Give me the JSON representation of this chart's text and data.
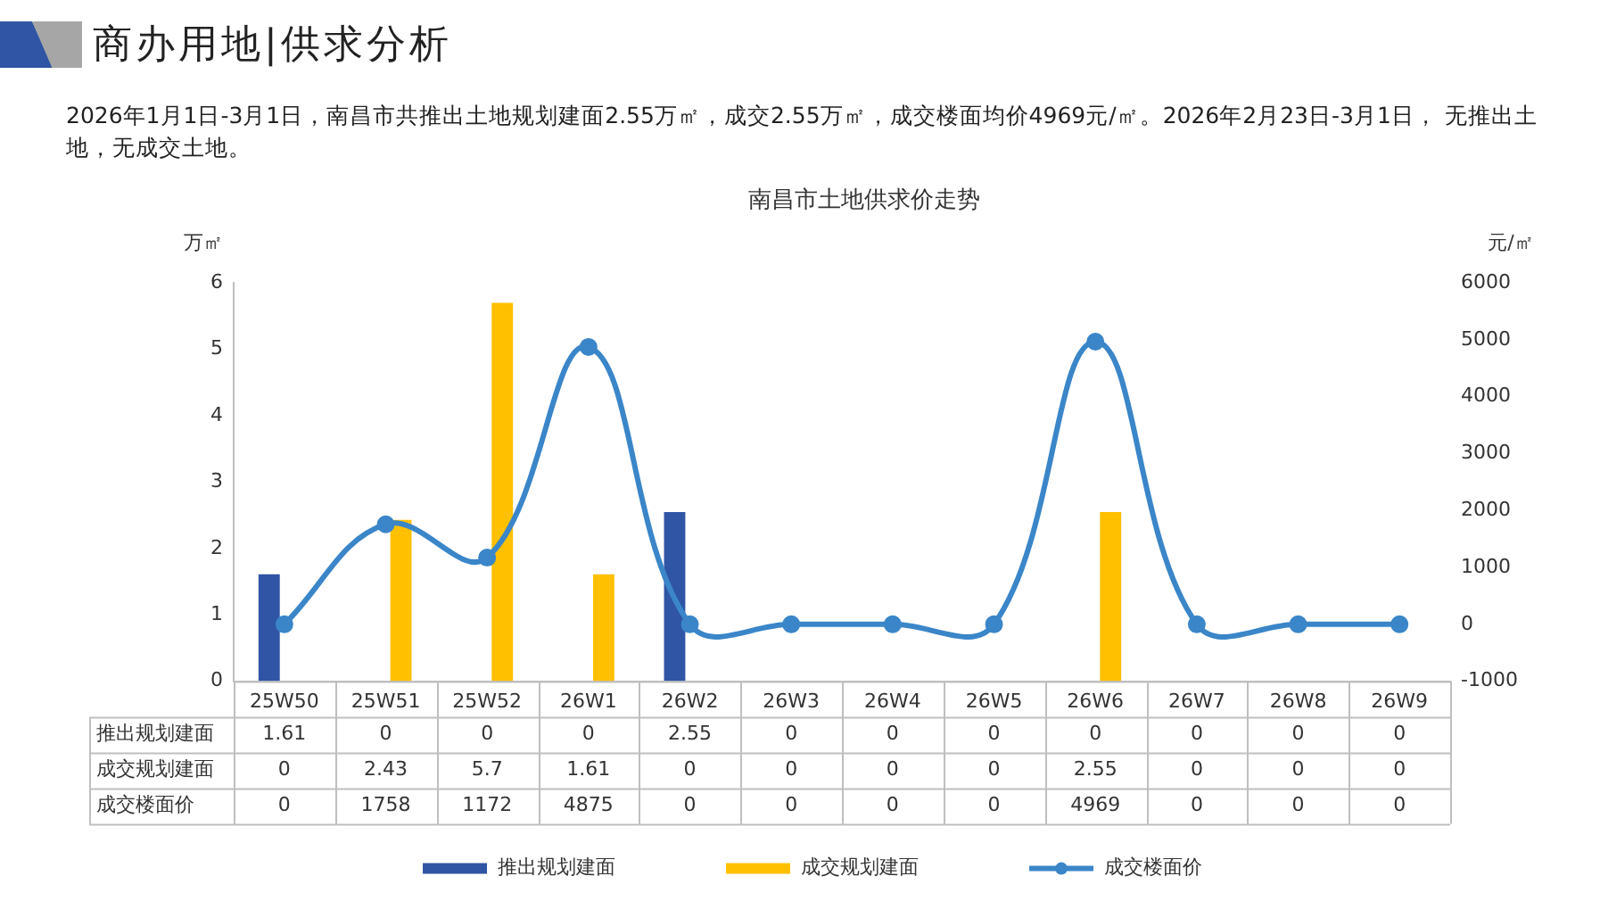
{
  "chart_data": {
    "type": "bar",
    "title": "南昌市土地供求价走势",
    "subtitle": "2026年1月1日-3月1日，南昌市共推出土地规划建面2.55万㎡，成交2.55万㎡，成交楼面均价4969元/㎡。2026年2月23日-3月1日， 无推出土地，无成交土地。",
    "annotations": [
      "商办用地|供求分析"
    ],
    "ylabel": "万㎡",
    "y2label": "元/㎡",
    "categories": [
      "25W50",
      "25W51",
      "25W52",
      "26W1",
      "26W2",
      "26W3",
      "26W4",
      "26W5",
      "26W6",
      "26W7",
      "26W8",
      "26W9"
    ],
    "series": [
      {
        "name": "推出规划建面",
        "color": "#2f55a4",
        "values": [
          1.61,
          0,
          0,
          0,
          2.55,
          0,
          0,
          0,
          0,
          0,
          0,
          0
        ]
      },
      {
        "name": "成交规划建面",
        "color": "#ffc000",
        "values": [
          0,
          2.43,
          5.7,
          1.61,
          0,
          0,
          0,
          0,
          2.55,
          0,
          0,
          0
        ]
      },
      {
        "name": "成交楼面价",
        "type": "line",
        "axis": "y2",
        "color": "#3a86c8",
        "values": [
          0,
          1758,
          1172,
          4875,
          0,
          0,
          0,
          0,
          4969,
          0,
          0,
          0
        ]
      }
    ],
    "ylim": [
      0,
      6
    ],
    "yticks": [
      0,
      1,
      2,
      3,
      4,
      5,
      6
    ],
    "y2lim": [
      -1000,
      6000
    ],
    "y2ticks": [
      -1000,
      0,
      1000,
      2000,
      3000,
      4000,
      5000,
      6000
    ],
    "grid": false,
    "legend": "bottom",
    "marker": "circle",
    "data_labels": true
  }
}
